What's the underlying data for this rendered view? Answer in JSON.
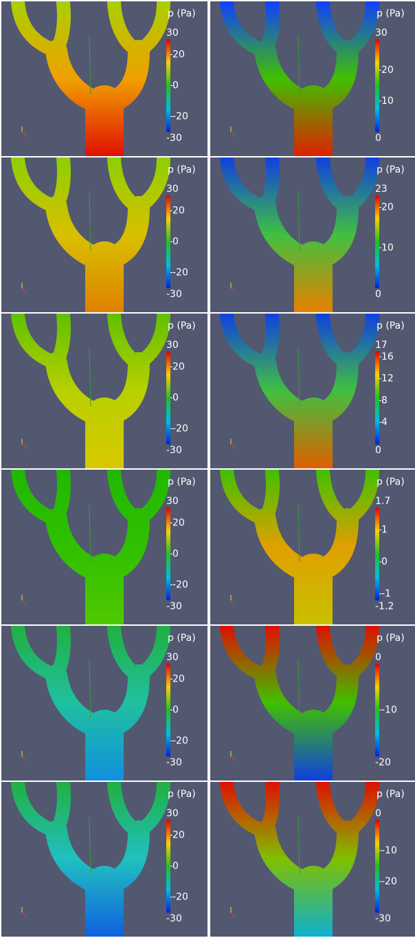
{
  "panels": [
    {
      "colorbar": {
        "title": "p (Pa)",
        "max": 30,
        "min": -30,
        "ticks": [
          20,
          0,
          -20
        ]
      }
    },
    {
      "colorbar": {
        "title": "p (Pa)",
        "max": 30,
        "min": 0,
        "ticks": [
          20,
          10
        ]
      }
    },
    {
      "colorbar": {
        "title": "p (Pa)",
        "max": 30,
        "min": -30,
        "ticks": [
          20,
          0,
          -20
        ]
      }
    },
    {
      "colorbar": {
        "title": "p (Pa)",
        "max": 23,
        "min": 0,
        "ticks": [
          20,
          10
        ]
      }
    },
    {
      "colorbar": {
        "title": "p (Pa)",
        "max": 30,
        "min": -30,
        "ticks": [
          20,
          0,
          -20
        ]
      }
    },
    {
      "colorbar": {
        "title": "p (Pa)",
        "max": 17,
        "min": 0,
        "ticks": [
          16,
          12,
          8,
          4
        ]
      }
    },
    {
      "colorbar": {
        "title": "p (Pa)",
        "max": 30,
        "min": -30,
        "ticks": [
          20,
          0,
          -20
        ]
      }
    },
    {
      "colorbar": {
        "title": "p (Pa)",
        "max": 1.7,
        "min": -1.2,
        "ticks": [
          1,
          0,
          -1
        ]
      }
    },
    {
      "colorbar": {
        "title": "p (Pa)",
        "max": 30,
        "min": -30,
        "ticks": [
          20,
          0,
          -20
        ]
      }
    },
    {
      "colorbar": {
        "title": "p (Pa)",
        "max": 0,
        "min": -20,
        "ticks": [
          -10
        ]
      }
    },
    {
      "colorbar": {
        "title": "p (Pa)",
        "max": 30,
        "min": -30,
        "ticks": [
          20,
          0,
          -20
        ]
      }
    },
    {
      "colorbar": {
        "title": "p (Pa)",
        "max": 0,
        "min": -30,
        "ticks": [
          -10,
          -20
        ]
      }
    }
  ]
}
